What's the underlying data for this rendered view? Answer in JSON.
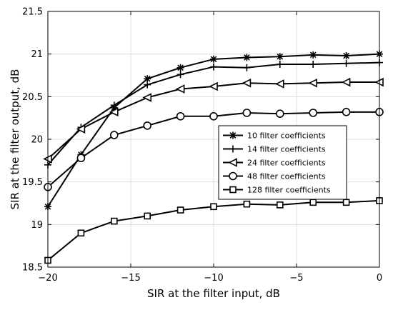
{
  "chart_data": {
    "type": "line",
    "xlabel": "SIR at the filter input, dB",
    "ylabel": "SIR at the filter output, dB",
    "xlim": [
      -20,
      0
    ],
    "ylim": [
      18.5,
      21.5
    ],
    "xticks": [
      -20,
      -15,
      -10,
      -5,
      0
    ],
    "xtick_labels": [
      "−20",
      "−15",
      "−10",
      "−5",
      "0"
    ],
    "yticks": [
      18.5,
      19,
      19.5,
      20,
      20.5,
      21,
      21.5
    ],
    "ytick_labels": [
      "18.5",
      "19",
      "19.5",
      "20",
      "20.5",
      "21",
      "21.5"
    ],
    "grid": true,
    "legend_position": "center-right",
    "x": [
      -20,
      -18,
      -16,
      -14,
      -12,
      -10,
      -8,
      -6,
      -4,
      -2,
      0
    ],
    "series": [
      {
        "name": "10 filter coefficients",
        "marker": "asterisk",
        "values": [
          19.21,
          19.82,
          20.37,
          20.71,
          20.84,
          20.94,
          20.96,
          20.97,
          20.99,
          20.98,
          21.0
        ]
      },
      {
        "name": "14 filter coefficients",
        "marker": "plus",
        "values": [
          19.7,
          20.14,
          20.4,
          20.64,
          20.76,
          20.85,
          20.84,
          20.88,
          20.88,
          20.89,
          20.9
        ]
      },
      {
        "name": "24 filter coefficients",
        "marker": "triangle-left",
        "values": [
          19.77,
          20.12,
          20.32,
          20.49,
          20.59,
          20.62,
          20.66,
          20.65,
          20.66,
          20.67,
          20.67
        ]
      },
      {
        "name": "48 filter coefficients",
        "marker": "circle",
        "values": [
          19.44,
          19.78,
          20.05,
          20.16,
          20.27,
          20.27,
          20.31,
          20.3,
          20.31,
          20.32,
          20.32
        ]
      },
      {
        "name": "128 filter coefficients",
        "marker": "square",
        "values": [
          18.58,
          18.9,
          19.04,
          19.1,
          19.17,
          19.21,
          19.24,
          19.23,
          19.26,
          19.26,
          19.28
        ]
      }
    ]
  }
}
